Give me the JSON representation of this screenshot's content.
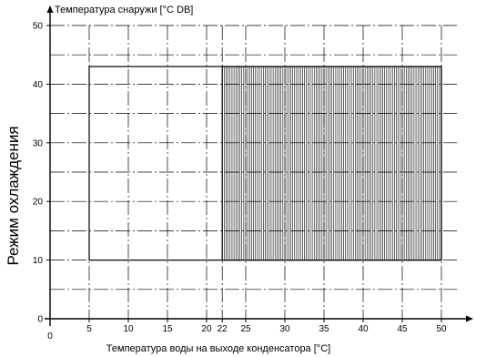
{
  "chart_data": {
    "type": "area",
    "title": "",
    "xlabel": "Температура воды на выходе конденсатора [°C]",
    "ylabel": "Температура снаружи [°C DB]",
    "side_label": "Режим охлаждения",
    "xlim": [
      0,
      52
    ],
    "ylim": [
      0,
      50
    ],
    "x_ticks": [
      0,
      5,
      10,
      15,
      20,
      22,
      25,
      30,
      35,
      40,
      45,
      50
    ],
    "y_ticks": [
      0,
      10,
      20,
      30,
      40,
      50
    ],
    "x_ticks_printed": [
      "0",
      "5",
      "10",
      "15",
      "20",
      "22",
      "25",
      "30",
      "35",
      "40",
      "45",
      "50"
    ],
    "y_ticks_printed": [
      "0",
      "10",
      "20",
      "30",
      "40",
      "50"
    ],
    "grid": true,
    "grid_style": "dash-dot",
    "regions": [
      {
        "shape": "rectangle",
        "x": [
          5,
          50
        ],
        "y": [
          10,
          43
        ],
        "fill": "none"
      },
      {
        "shape": "rectangle",
        "x": [
          22,
          50
        ],
        "y": [
          10,
          43
        ],
        "fill": "vertical-hatch"
      }
    ],
    "colors": {
      "line": "#000000",
      "hatch": "#000000",
      "grid": "#000000",
      "background": "#ffffff"
    }
  }
}
